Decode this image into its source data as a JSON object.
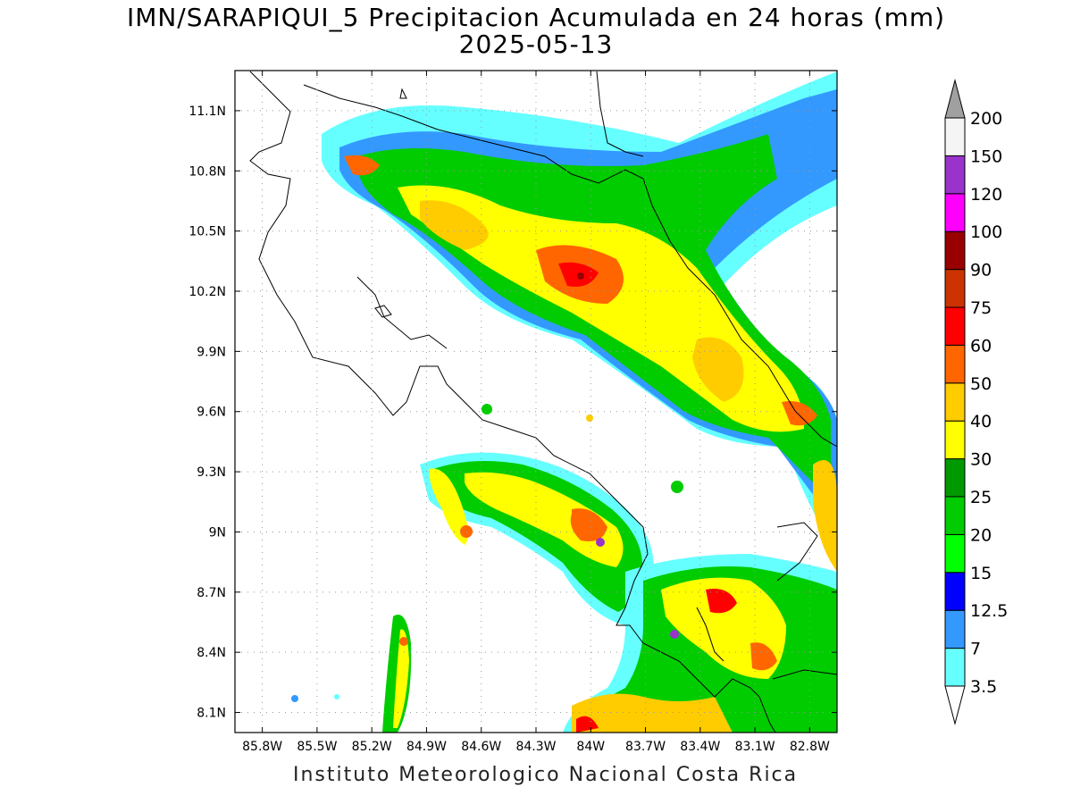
{
  "header": {
    "title": "IMN/SARAPIQUI_5 Precipitacion Acumulada en 24 horas (mm)",
    "date": "2025-05-13"
  },
  "footer": {
    "credit": "Instituto Meteorologico Nacional Costa Rica"
  },
  "map": {
    "lon_range": [
      -85.95,
      -82.65
    ],
    "lat_range": [
      8.0,
      11.3
    ],
    "lon_ticks": [
      "85.8W",
      "85.5W",
      "85.2W",
      "84.9W",
      "84.6W",
      "84.3W",
      "84W",
      "83.7W",
      "83.4W",
      "83.1W",
      "82.8W"
    ],
    "lat_ticks": [
      "11.1N",
      "10.8N",
      "10.5N",
      "10.2N",
      "9.9N",
      "9.6N",
      "9.3N",
      "9N",
      "8.7N",
      "8.4N",
      "8.1N"
    ]
  },
  "colorbar": {
    "levels": [
      "3.5",
      "7",
      "12.5",
      "15",
      "20",
      "25",
      "30",
      "40",
      "50",
      "60",
      "75",
      "90",
      "100",
      "120",
      "150",
      "200"
    ],
    "colors": [
      "#66ffff",
      "#3399ff",
      "#0000ff",
      "#00ff00",
      "#00cc00",
      "#009900",
      "#ffff00",
      "#ffcc00",
      "#ff6600",
      "#ff0000",
      "#cc3300",
      "#990000",
      "#ff00ff",
      "#9933cc",
      "#f5f5f5",
      "#a0a0a0"
    ],
    "over_color": "#a0a0a0",
    "under_color": "#ffffff"
  }
}
